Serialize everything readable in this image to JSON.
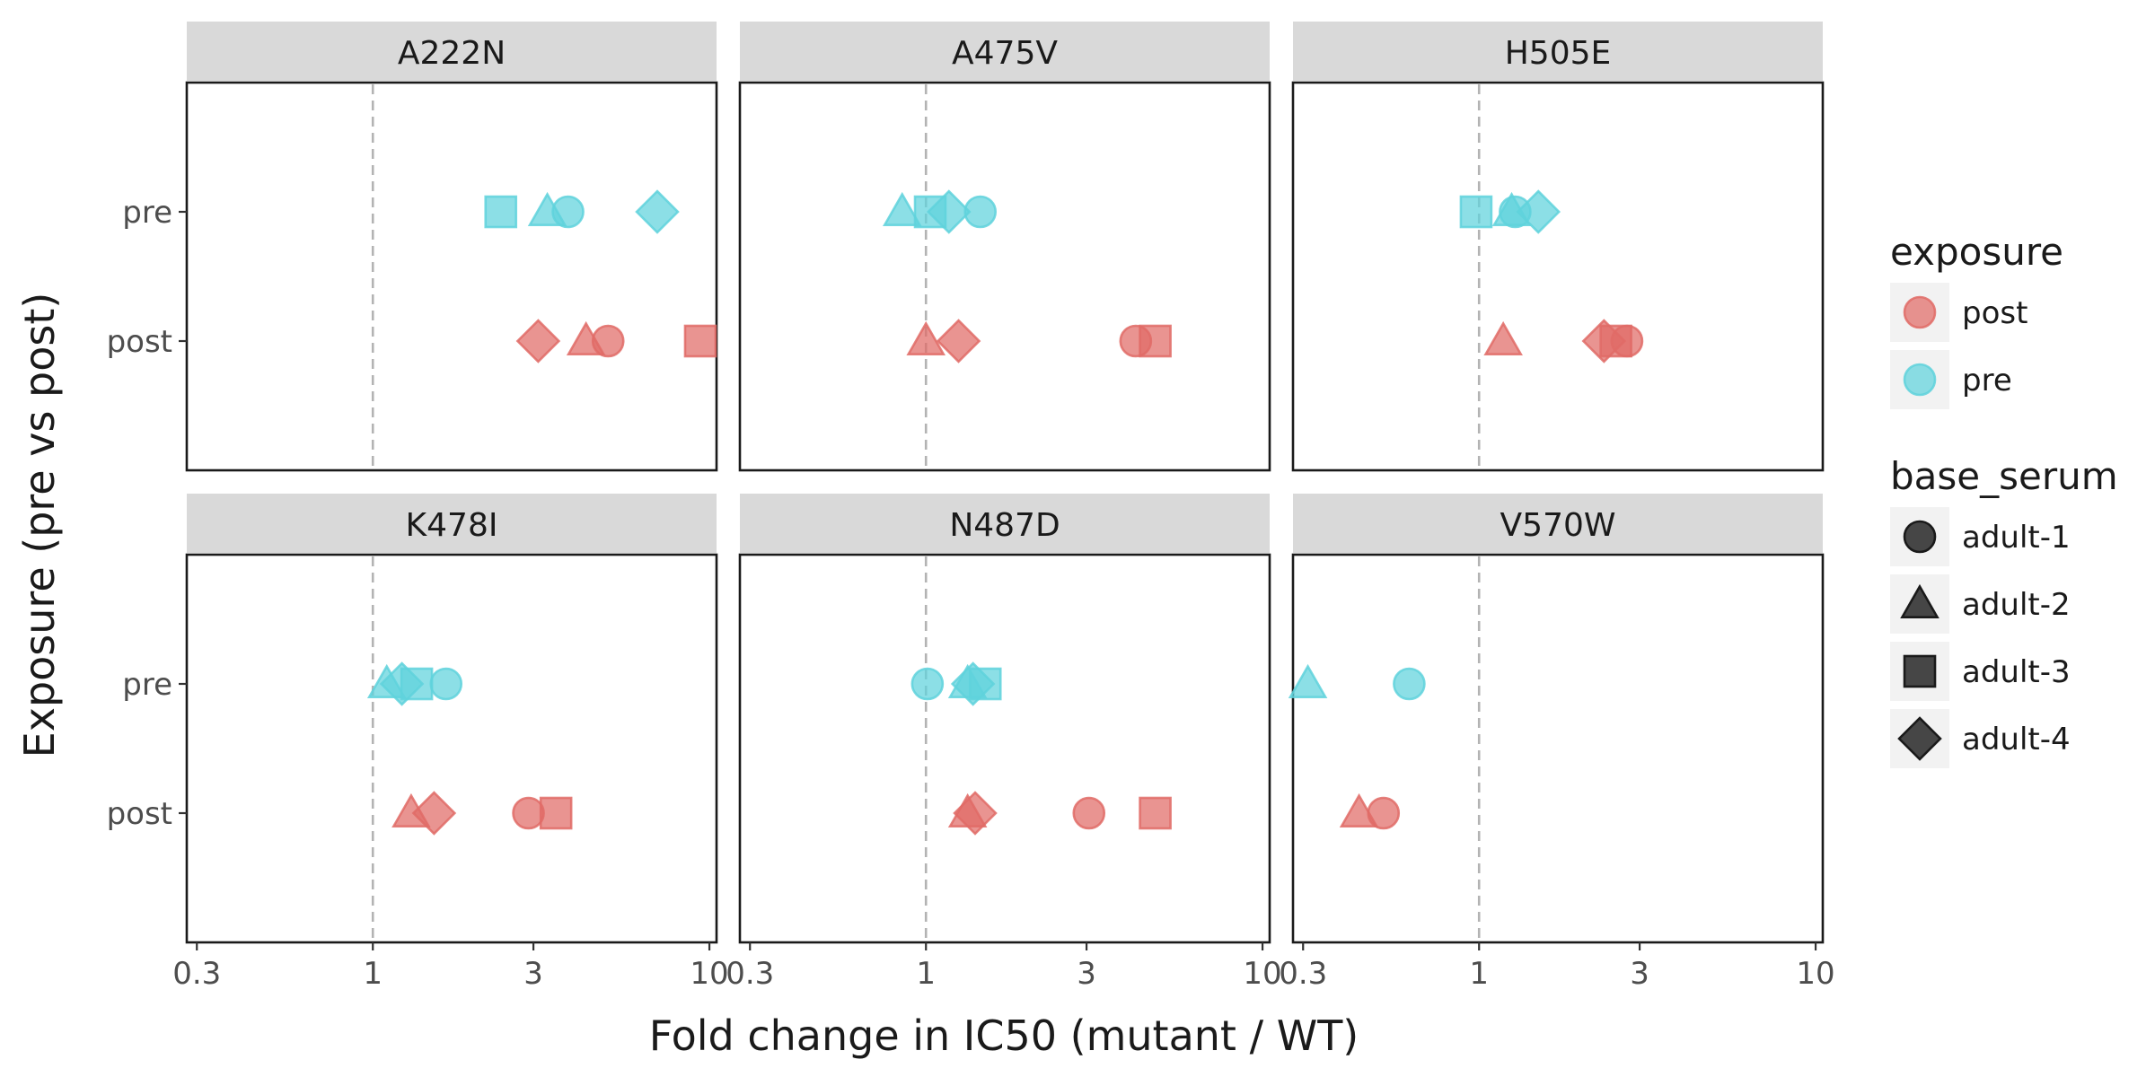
{
  "chart_data": {
    "type": "scatter",
    "xlabel": "Fold change in IC50 (mutant / WT)",
    "ylabel": "Exposure (pre vs post)",
    "x_scale": "log",
    "xlim": [
      0.28,
      10.5
    ],
    "x_ticks": [
      0.3,
      1,
      3,
      10
    ],
    "x_tick_labels": [
      "0.3",
      "1",
      "3",
      "10"
    ],
    "y_categories": [
      "post",
      "pre"
    ],
    "reference_line_x": 1,
    "grid": false,
    "colors": {
      "post": "#e06b66",
      "pre": "#5fd2dc"
    },
    "legend": {
      "placement": "right",
      "exposure_title": "exposure",
      "exposure_items": [
        "post",
        "pre"
      ],
      "serum_title": "base_serum",
      "serum_items": [
        {
          "label": "adult-1",
          "shape": "circle"
        },
        {
          "label": "adult-2",
          "shape": "triangle"
        },
        {
          "label": "adult-3",
          "shape": "square"
        },
        {
          "label": "adult-4",
          "shape": "diamond"
        }
      ]
    },
    "panels": [
      {
        "label": "A222N",
        "points": [
          {
            "serum": "adult-1",
            "exposure": "pre",
            "x": 3.8
          },
          {
            "serum": "adult-2",
            "exposure": "pre",
            "x": 3.3
          },
          {
            "serum": "adult-3",
            "exposure": "pre",
            "x": 2.4
          },
          {
            "serum": "adult-4",
            "exposure": "pre",
            "x": 7.0
          },
          {
            "serum": "adult-1",
            "exposure": "post",
            "x": 5.0
          },
          {
            "serum": "adult-2",
            "exposure": "post",
            "x": 4.3
          },
          {
            "serum": "adult-3",
            "exposure": "post",
            "x": 9.4
          },
          {
            "serum": "adult-4",
            "exposure": "post",
            "x": 3.1
          }
        ]
      },
      {
        "label": "A475V",
        "points": [
          {
            "serum": "adult-1",
            "exposure": "pre",
            "x": 1.45
          },
          {
            "serum": "adult-2",
            "exposure": "pre",
            "x": 0.85
          },
          {
            "serum": "adult-3",
            "exposure": "pre",
            "x": 1.03
          },
          {
            "serum": "adult-4",
            "exposure": "pre",
            "x": 1.17
          },
          {
            "serum": "adult-1",
            "exposure": "post",
            "x": 4.2
          },
          {
            "serum": "adult-2",
            "exposure": "post",
            "x": 1.0
          },
          {
            "serum": "adult-3",
            "exposure": "post",
            "x": 4.8
          },
          {
            "serum": "adult-4",
            "exposure": "post",
            "x": 1.25
          }
        ]
      },
      {
        "label": "H505E",
        "points": [
          {
            "serum": "adult-1",
            "exposure": "pre",
            "x": 1.28
          },
          {
            "serum": "adult-2",
            "exposure": "pre",
            "x": 1.25
          },
          {
            "serum": "adult-3",
            "exposure": "pre",
            "x": 0.98
          },
          {
            "serum": "adult-4",
            "exposure": "pre",
            "x": 1.5
          },
          {
            "serum": "adult-1",
            "exposure": "post",
            "x": 2.75
          },
          {
            "serum": "adult-2",
            "exposure": "post",
            "x": 1.18
          },
          {
            "serum": "adult-3",
            "exposure": "post",
            "x": 2.55
          },
          {
            "serum": "adult-4",
            "exposure": "post",
            "x": 2.35
          }
        ]
      },
      {
        "label": "K478I",
        "points": [
          {
            "serum": "adult-1",
            "exposure": "pre",
            "x": 1.65
          },
          {
            "serum": "adult-2",
            "exposure": "pre",
            "x": 1.1
          },
          {
            "serum": "adult-3",
            "exposure": "pre",
            "x": 1.35
          },
          {
            "serum": "adult-4",
            "exposure": "pre",
            "x": 1.22
          },
          {
            "serum": "adult-1",
            "exposure": "post",
            "x": 2.9
          },
          {
            "serum": "adult-2",
            "exposure": "post",
            "x": 1.3
          },
          {
            "serum": "adult-3",
            "exposure": "post",
            "x": 3.5
          },
          {
            "serum": "adult-4",
            "exposure": "post",
            "x": 1.52
          }
        ]
      },
      {
        "label": "N487D",
        "points": [
          {
            "serum": "adult-1",
            "exposure": "pre",
            "x": 1.01
          },
          {
            "serum": "adult-2",
            "exposure": "pre",
            "x": 1.33
          },
          {
            "serum": "adult-3",
            "exposure": "pre",
            "x": 1.5
          },
          {
            "serum": "adult-4",
            "exposure": "pre",
            "x": 1.38
          },
          {
            "serum": "adult-1",
            "exposure": "post",
            "x": 3.05
          },
          {
            "serum": "adult-2",
            "exposure": "post",
            "x": 1.33
          },
          {
            "serum": "adult-3",
            "exposure": "post",
            "x": 4.8
          },
          {
            "serum": "adult-4",
            "exposure": "post",
            "x": 1.4
          }
        ]
      },
      {
        "label": "V570W",
        "points": [
          {
            "serum": "adult-1",
            "exposure": "pre",
            "x": 0.62
          },
          {
            "serum": "adult-2",
            "exposure": "pre",
            "x": 0.31
          },
          {
            "serum": "adult-1",
            "exposure": "post",
            "x": 0.52
          },
          {
            "serum": "adult-2",
            "exposure": "post",
            "x": 0.44
          }
        ]
      }
    ]
  }
}
